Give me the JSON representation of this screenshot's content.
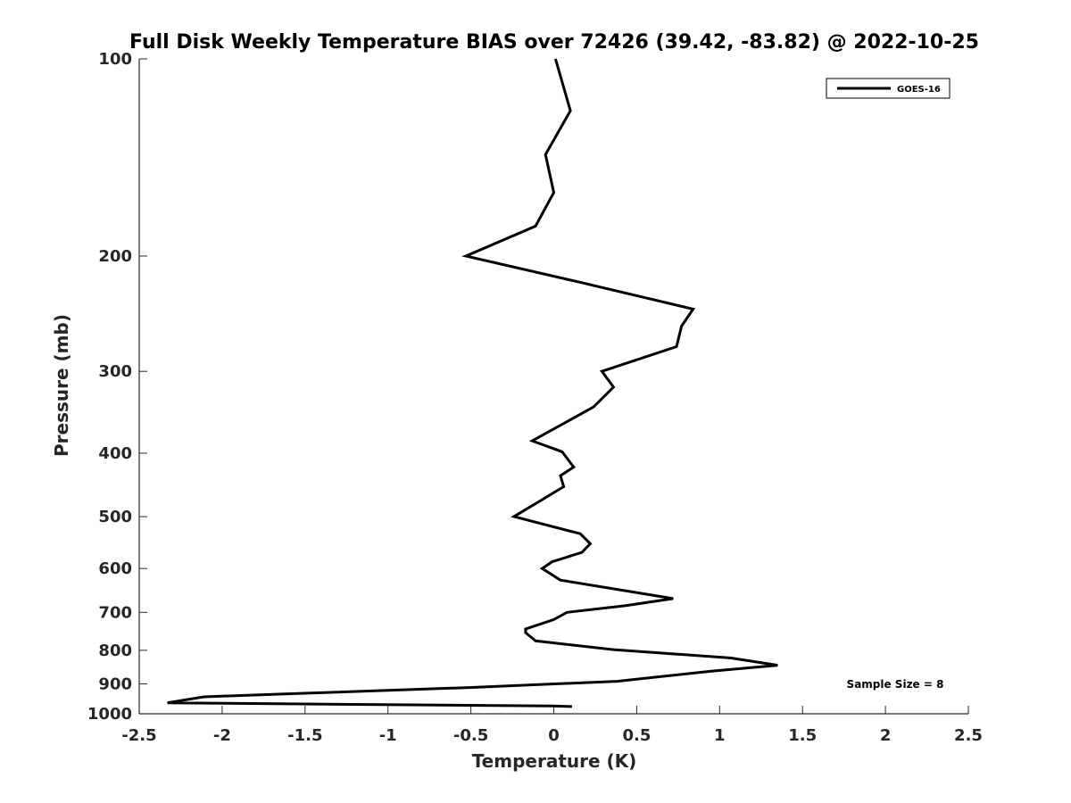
{
  "chart_data": {
    "type": "line",
    "title": "Full Disk Weekly Temperature BIAS over 72426 (39.42, -83.82) @ 2022-10-25",
    "xlabel": "Temperature (K)",
    "ylabel": "Pressure (mb)",
    "xlim": [
      -2.5,
      2.5
    ],
    "ylim": [
      100,
      1000
    ],
    "y_scale": "log",
    "y_reversed": true,
    "x_ticks": [
      "-2.5",
      "-2",
      "-1.5",
      "-1",
      "-0.5",
      "0",
      "0.5",
      "1",
      "1.5",
      "2",
      "2.5"
    ],
    "y_ticks": [
      "100",
      "200",
      "300",
      "400",
      "500",
      "600",
      "700",
      "800",
      "900",
      "1000"
    ],
    "grid": false,
    "legend_position": "top-right",
    "annotation": "Sample Size = 8",
    "series": [
      {
        "name": "GOES-16",
        "color": "#000000",
        "points": [
          [
            0.01,
            100
          ],
          [
            0.1,
            120
          ],
          [
            -0.05,
            140
          ],
          [
            0.0,
            160
          ],
          [
            -0.11,
            180
          ],
          [
            -0.53,
            200
          ],
          [
            0.18,
            220
          ],
          [
            0.84,
            241
          ],
          [
            0.77,
            256
          ],
          [
            0.74,
            275
          ],
          [
            0.29,
            300
          ],
          [
            0.36,
            317
          ],
          [
            0.24,
            340
          ],
          [
            -0.13,
            383
          ],
          [
            0.05,
            398
          ],
          [
            0.12,
            420
          ],
          [
            0.04,
            433
          ],
          [
            0.06,
            450
          ],
          [
            -0.04,
            466
          ],
          [
            -0.24,
            500
          ],
          [
            0.16,
            531
          ],
          [
            0.22,
            550
          ],
          [
            0.17,
            567
          ],
          [
            -0.01,
            586
          ],
          [
            -0.07,
            600
          ],
          [
            0.04,
            625
          ],
          [
            0.72,
            667
          ],
          [
            0.43,
            684
          ],
          [
            0.08,
            700
          ],
          [
            0.0,
            718
          ],
          [
            -0.17,
            742
          ],
          [
            -0.17,
            752
          ],
          [
            -0.11,
            774
          ],
          [
            0.36,
            798
          ],
          [
            1.07,
            822
          ],
          [
            1.35,
            843
          ],
          [
            0.95,
            861
          ],
          [
            0.38,
            892
          ],
          [
            -0.51,
            912
          ],
          [
            -1.64,
            933
          ],
          [
            -2.11,
            942
          ],
          [
            -2.33,
            962
          ],
          [
            -0.01,
            973
          ],
          [
            0.11,
            975
          ]
        ]
      }
    ]
  }
}
